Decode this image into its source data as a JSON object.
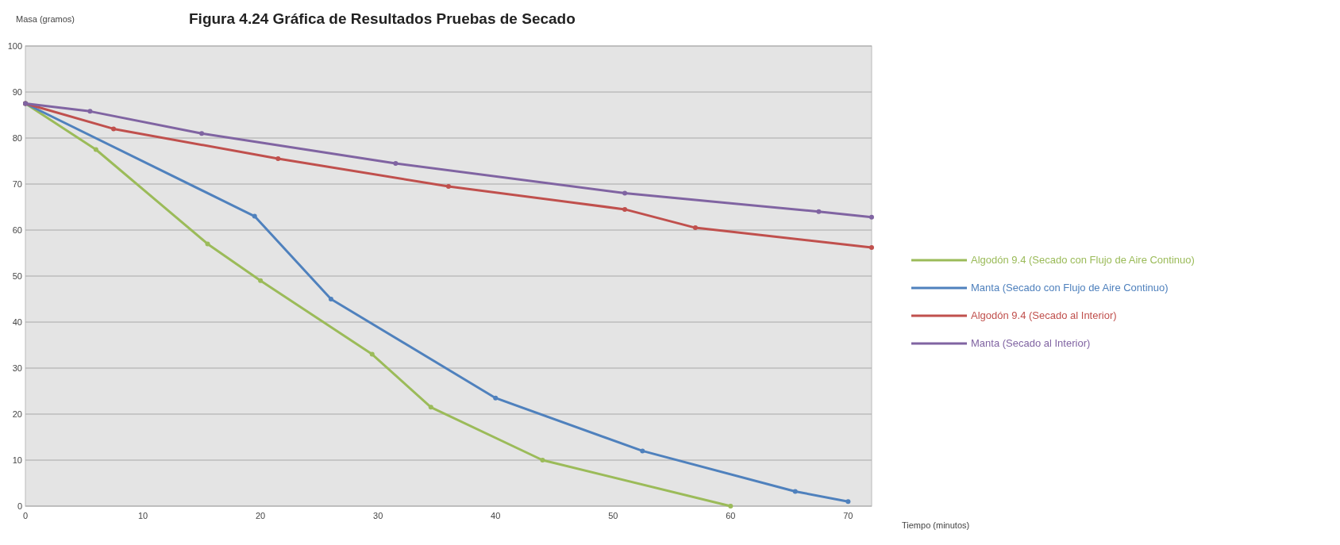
{
  "chart_data": {
    "type": "line",
    "title": "Figura 4.24  Gráfica de Resultados Pruebas de Secado",
    "ylabel": "Masa (gramos)",
    "xlabel": "Tiempo (minutos)",
    "xlim": [
      0,
      72
    ],
    "ylim": [
      0,
      100
    ],
    "xticks": [
      0,
      10,
      20,
      30,
      40,
      50,
      60,
      70
    ],
    "yticks": [
      0,
      10,
      20,
      30,
      40,
      50,
      60,
      70,
      80,
      90,
      100
    ],
    "grid": "y",
    "legend": "right",
    "marker": "circle",
    "line_style": "solid",
    "series": [
      {
        "name": "Algodón 9.4 (Secado con Flujo de Aire Continuo)",
        "color": "#9bbb59",
        "x": [
          0,
          6,
          15.5,
          20,
          29.5,
          34.5,
          44,
          60
        ],
        "values": [
          87.5,
          77.5,
          57,
          49,
          33,
          21.5,
          10,
          0
        ]
      },
      {
        "name": "Manta (Secado con Flujo de Aire Continuo)",
        "color": "#4f81bd",
        "x": [
          0,
          19.5,
          26,
          40,
          52.5,
          65.5,
          70
        ],
        "values": [
          87.5,
          63,
          45,
          23.5,
          12,
          3.2,
          1
        ]
      },
      {
        "name": "Algodón 9.4 (Secado al Interior)",
        "color": "#c0504d",
        "x": [
          0,
          7.5,
          21.5,
          36,
          51,
          57,
          72
        ],
        "values": [
          87.5,
          82,
          75.5,
          69.5,
          64.5,
          60.5,
          56.2
        ]
      },
      {
        "name": "Manta (Secado al Interior)",
        "color": "#8064a2",
        "x": [
          0,
          5.5,
          15,
          31.5,
          51,
          67.5,
          72
        ],
        "values": [
          87.5,
          85.8,
          81,
          74.5,
          68,
          64,
          62.8
        ]
      }
    ]
  }
}
